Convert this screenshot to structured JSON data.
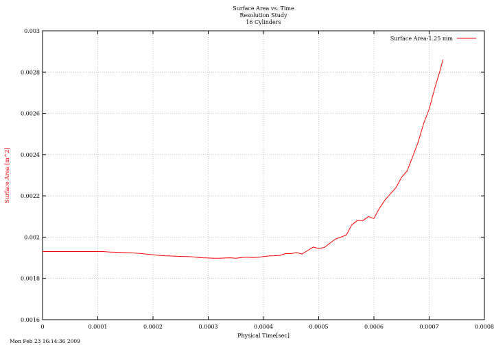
{
  "chart_data": {
    "type": "line",
    "title": [
      "Surface Area vs. Time",
      "Resolution Study",
      "16 Cylinders"
    ],
    "xlabel": "Physical Time[sec]",
    "ylabel": "Surface Area [m^2]",
    "xlim": [
      0,
      0.0008
    ],
    "ylim": [
      0.0016,
      0.003
    ],
    "xticks": [
      0,
      0.0001,
      0.0002,
      0.0003,
      0.0004,
      0.0005,
      0.0006,
      0.0007,
      0.0008
    ],
    "xtick_labels": [
      "0",
      "0.0001",
      "0.0002",
      "0.0003",
      "0.0004",
      "0.0005",
      "0.0006",
      "0.0007",
      "0.0008"
    ],
    "yticks": [
      0.0016,
      0.0018,
      0.002,
      0.0022,
      0.0024,
      0.0026,
      0.0028,
      0.003
    ],
    "ytick_labels": [
      "0.0016",
      "0.0018",
      "0.002",
      "0.0022",
      "0.0024",
      "0.0026",
      "0.0028",
      "0.003"
    ],
    "grid": true,
    "legend_position": "top-right",
    "timestamp": "Mon Feb 23 16:14:36 2009",
    "series": [
      {
        "name": "Surface Area-1.25 mm",
        "color": "#ff0000",
        "x": [
          0,
          2e-05,
          4e-05,
          6e-05,
          8e-05,
          0.0001,
          0.00011,
          0.00012,
          0.00013,
          0.00014,
          0.00015,
          0.00016,
          0.00017,
          0.00018,
          0.00019,
          0.0002,
          0.00021,
          0.00022,
          0.00023,
          0.00024,
          0.00025,
          0.00026,
          0.00027,
          0.00028,
          0.00029,
          0.0003,
          0.00031,
          0.00032,
          0.00033,
          0.00034,
          0.00035,
          0.00036,
          0.00037,
          0.00038,
          0.00039,
          0.0004,
          0.00041,
          0.00042,
          0.00043,
          0.00044,
          0.00045,
          0.00046,
          0.00047,
          0.00048,
          0.00049,
          0.0005,
          0.00051,
          0.00052,
          0.00053,
          0.00054,
          0.00055,
          0.00056,
          0.00057,
          0.00058,
          0.00059,
          0.0006,
          0.00061,
          0.00062,
          0.00063,
          0.00064,
          0.00065,
          0.00066,
          0.00067,
          0.00068,
          0.00069,
          0.0007,
          0.00071,
          0.00072,
          0.000725
        ],
        "y": [
          0.00193,
          0.00193,
          0.00193,
          0.00193,
          0.00193,
          0.00193,
          0.00193,
          0.001928,
          0.001927,
          0.001926,
          0.001925,
          0.001924,
          0.001922,
          0.00192,
          0.001917,
          0.001915,
          0.001912,
          0.00191,
          0.001909,
          0.001908,
          0.001907,
          0.001906,
          0.001905,
          0.001902,
          0.0019,
          0.001899,
          0.001898,
          0.001898,
          0.001899,
          0.0019,
          0.001898,
          0.001901,
          0.001903,
          0.001901,
          0.001902,
          0.001906,
          0.001909,
          0.00191,
          0.001912,
          0.00192,
          0.00192,
          0.001925,
          0.001918,
          0.001935,
          0.001952,
          0.001945,
          0.00195,
          0.00197,
          0.00199,
          0.002,
          0.00201,
          0.00206,
          0.00208,
          0.00208,
          0.0021,
          0.00209,
          0.00214,
          0.00218,
          0.00221,
          0.00224,
          0.00229,
          0.00232,
          0.00239,
          0.00246,
          0.00255,
          0.00262,
          0.00272,
          0.00281,
          0.00286
        ]
      }
    ]
  }
}
